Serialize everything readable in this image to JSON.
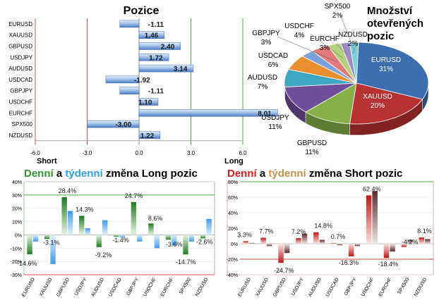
{
  "colors": {
    "denni": "#2e9a2e",
    "tydenni": "#2aa0e6",
    "denni_short": "#d42020",
    "tydenni_short": "#c8924a",
    "long_bar": "#5b8fd0",
    "green_line": "#4fa84f",
    "red_line": "#d05050"
  },
  "chart_data": [
    {
      "type": "bar",
      "orientation": "horizontal",
      "title": "Pozice",
      "categories": [
        "EURUSD",
        "XAUUSD",
        "GBPUSD",
        "USDJPY",
        "AUDUSD",
        "USDCAD",
        "GBPJPY",
        "USDCHF",
        "EURCHF",
        "SPX500",
        "NZDUSD"
      ],
      "values": [
        -1.11,
        1.46,
        2.4,
        1.72,
        3.14,
        -1.92,
        -1.11,
        1.1,
        8.01,
        -3.0,
        1.22
      ],
      "value_labels": [
        "-1.11",
        "1.46",
        "2.40",
        "1.72",
        "3.14",
        "-1.92",
        "-1.11",
        "1.10",
        "8.01",
        "-3.00",
        "1.22"
      ],
      "xlim": [
        -6,
        6
      ],
      "ticks": [
        "-6.0",
        "-3.0",
        "0.0",
        "3.0",
        "6.0"
      ],
      "xlabel_left": "Short",
      "xlabel_right": "Long"
    },
    {
      "type": "pie",
      "title_lines": [
        "Množství",
        "otevřených",
        "pozic"
      ],
      "labels": [
        "EURUSD",
        "XAUUSD",
        "GBPUSD",
        "USDJPY",
        "AUDUSD",
        "USDCAD",
        "GBPJPY",
        "USDCHF",
        "EURCHF",
        "NZDUSD",
        "SPX500"
      ],
      "values": [
        31,
        20,
        11,
        11,
        7,
        6,
        3,
        4,
        3,
        2,
        2
      ],
      "value_labels": [
        "31%",
        "20%",
        "11%",
        "11%",
        "7%",
        "6%",
        "3%",
        "4%",
        "3%",
        "2%",
        "2%"
      ],
      "colors": [
        "#3d6fb0",
        "#b83232",
        "#88b04a",
        "#6f4f9a",
        "#3ea6c0",
        "#e8902f",
        "#7da2d8",
        "#e27b7b",
        "#b7d07f",
        "#9e8cc4",
        "#80d0e0"
      ]
    },
    {
      "type": "bar",
      "title_parts": [
        "Denní",
        " a ",
        "týdenní",
        " změna Long pozic"
      ],
      "categories": [
        "EURUSD",
        "XAUUSD",
        "GBPUSD",
        "USDJPY",
        "AUDUSD",
        "USDCAD",
        "GBPJPY",
        "USDCHF",
        "EURCHF",
        "SPX500",
        "NZDUSD"
      ],
      "series": [
        {
          "name": "Denní",
          "values": [
            -14.6,
            -3.1,
            28.4,
            14.3,
            -9.2,
            -1.4,
            24.7,
            8.6,
            -3.6,
            -14.7,
            -2.6
          ]
        },
        {
          "name": "týdenní",
          "values": [
            -5,
            -22,
            18,
            5,
            11,
            -2,
            -5,
            -10,
            -8,
            -5,
            12
          ]
        }
      ],
      "data_labels": [
        "-14.6%",
        "-3.1%",
        "28.4%",
        "14.3%",
        "-9.2%",
        "-1.4%",
        "24.7%",
        "8.6%",
        "-3.6%",
        "-14.7%",
        "-2.6%"
      ],
      "ylim": [
        -30,
        40
      ],
      "yticks": [
        "40%",
        "30%",
        "20%",
        "10%",
        "0%",
        "-10%",
        "-20%",
        "-30%"
      ]
    },
    {
      "type": "bar",
      "title_parts": [
        "Denní",
        " a ",
        "týdenní",
        " změna Short pozic"
      ],
      "categories": [
        "EURUSD",
        "XAUUSD",
        "GBPUSD",
        "USDJPY",
        "AUDUSD",
        "USDCAD",
        "GBPJPY",
        "USDCHF",
        "EURCHF",
        "SPX500",
        "NZDUSD"
      ],
      "series": [
        {
          "name": "Denní",
          "values": [
            3.3,
            7.7,
            -24.7,
            7.2,
            14.8,
            0.7,
            -16.3,
            62.4,
            -18.4,
            -4.2,
            8.1
          ]
        },
        {
          "name": "týdenní",
          "values": [
            1,
            -3,
            -12,
            13,
            5,
            -2,
            -3,
            68,
            -10,
            5,
            6
          ]
        }
      ],
      "data_labels": [
        "3.3%",
        "7.7%",
        "-24.7%",
        "7.2%",
        "14.8%",
        "0.7%",
        "-16.3%",
        "62.4%",
        "-18.4%",
        "-4.2%",
        "8.1%"
      ],
      "ylim": [
        -40,
        80
      ],
      "yticks": [
        "80%",
        "60%",
        "40%",
        "20%",
        "0%",
        "-20%",
        "-40%"
      ]
    }
  ]
}
